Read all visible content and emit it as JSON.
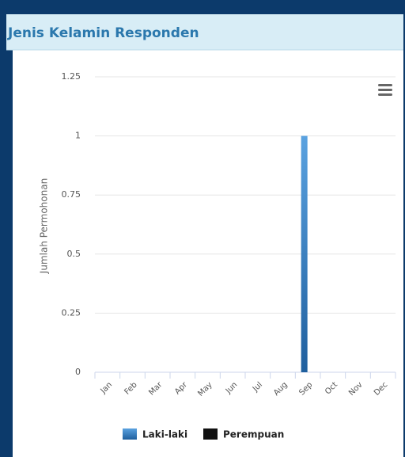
{
  "chart_data": {
    "type": "bar",
    "title": "Jenis Kelamin Responden",
    "categories": [
      "Jan",
      "Feb",
      "Mar",
      "Apr",
      "May",
      "Jun",
      "Jul",
      "Aug",
      "Sep",
      "Oct",
      "Nov",
      "Dec"
    ],
    "series": [
      {
        "name": "Laki-laki",
        "color": "#3f86cc",
        "values": [
          0,
          0,
          0,
          0,
          0,
          0,
          0,
          0,
          1,
          0,
          0,
          0
        ]
      },
      {
        "name": "Perempuan",
        "color": "#111111",
        "values": [
          0,
          0,
          0,
          0,
          0,
          0,
          0,
          0,
          0,
          0,
          0,
          0
        ]
      }
    ],
    "y_label": "Jumlah Permohonan",
    "ylim": [
      0,
      1.25
    ],
    "yticks": [
      0,
      0.25,
      0.5,
      0.75,
      1,
      1.25
    ],
    "grid": true,
    "legend": "bottom"
  }
}
